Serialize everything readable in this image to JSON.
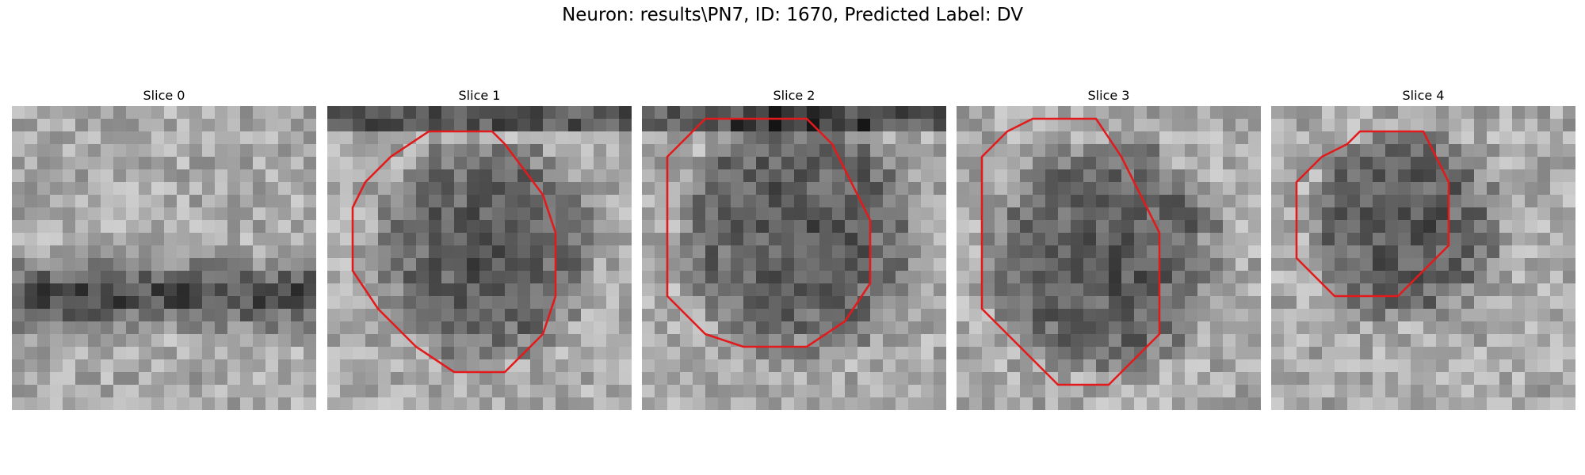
{
  "figure": {
    "title": "Neuron: results\\PN7, ID: 1670, Predicted Label: DV"
  },
  "slices": [
    {
      "title": "Slice 0",
      "contour": null
    },
    {
      "title": "Slice 1",
      "contour": [
        [
          13,
          2
        ],
        [
          8,
          2
        ],
        [
          5,
          4
        ],
        [
          3,
          6
        ],
        [
          2,
          8
        ],
        [
          2,
          13
        ],
        [
          4,
          16
        ],
        [
          7,
          19
        ],
        [
          10,
          21
        ],
        [
          14,
          21
        ],
        [
          17,
          18
        ],
        [
          18,
          15
        ],
        [
          18,
          10
        ],
        [
          17,
          7
        ],
        [
          14,
          3
        ]
      ]
    },
    {
      "title": "Slice 2",
      "contour": [
        [
          13,
          1
        ],
        [
          5,
          1
        ],
        [
          2,
          4
        ],
        [
          2,
          15
        ],
        [
          5,
          18
        ],
        [
          8,
          19
        ],
        [
          13,
          19
        ],
        [
          16,
          17
        ],
        [
          18,
          14
        ],
        [
          18,
          9
        ],
        [
          15,
          3
        ]
      ]
    },
    {
      "title": "Slice 3",
      "contour": [
        [
          11,
          1
        ],
        [
          6,
          1
        ],
        [
          4,
          2
        ],
        [
          2,
          4
        ],
        [
          2,
          16
        ],
        [
          5,
          19
        ],
        [
          8,
          22
        ],
        [
          12,
          22
        ],
        [
          14,
          20
        ],
        [
          16,
          18
        ],
        [
          16,
          10
        ],
        [
          14,
          6
        ],
        [
          13,
          4
        ]
      ]
    },
    {
      "title": "Slice 4",
      "contour": [
        [
          12,
          2
        ],
        [
          7,
          2
        ],
        [
          6,
          3
        ],
        [
          4,
          4
        ],
        [
          2,
          6
        ],
        [
          2,
          12
        ],
        [
          4,
          14
        ],
        [
          5,
          15
        ],
        [
          10,
          15
        ],
        [
          12,
          13
        ],
        [
          14,
          11
        ],
        [
          14,
          6
        ]
      ]
    }
  ],
  "colors": {
    "contour": "#e31a1c"
  }
}
